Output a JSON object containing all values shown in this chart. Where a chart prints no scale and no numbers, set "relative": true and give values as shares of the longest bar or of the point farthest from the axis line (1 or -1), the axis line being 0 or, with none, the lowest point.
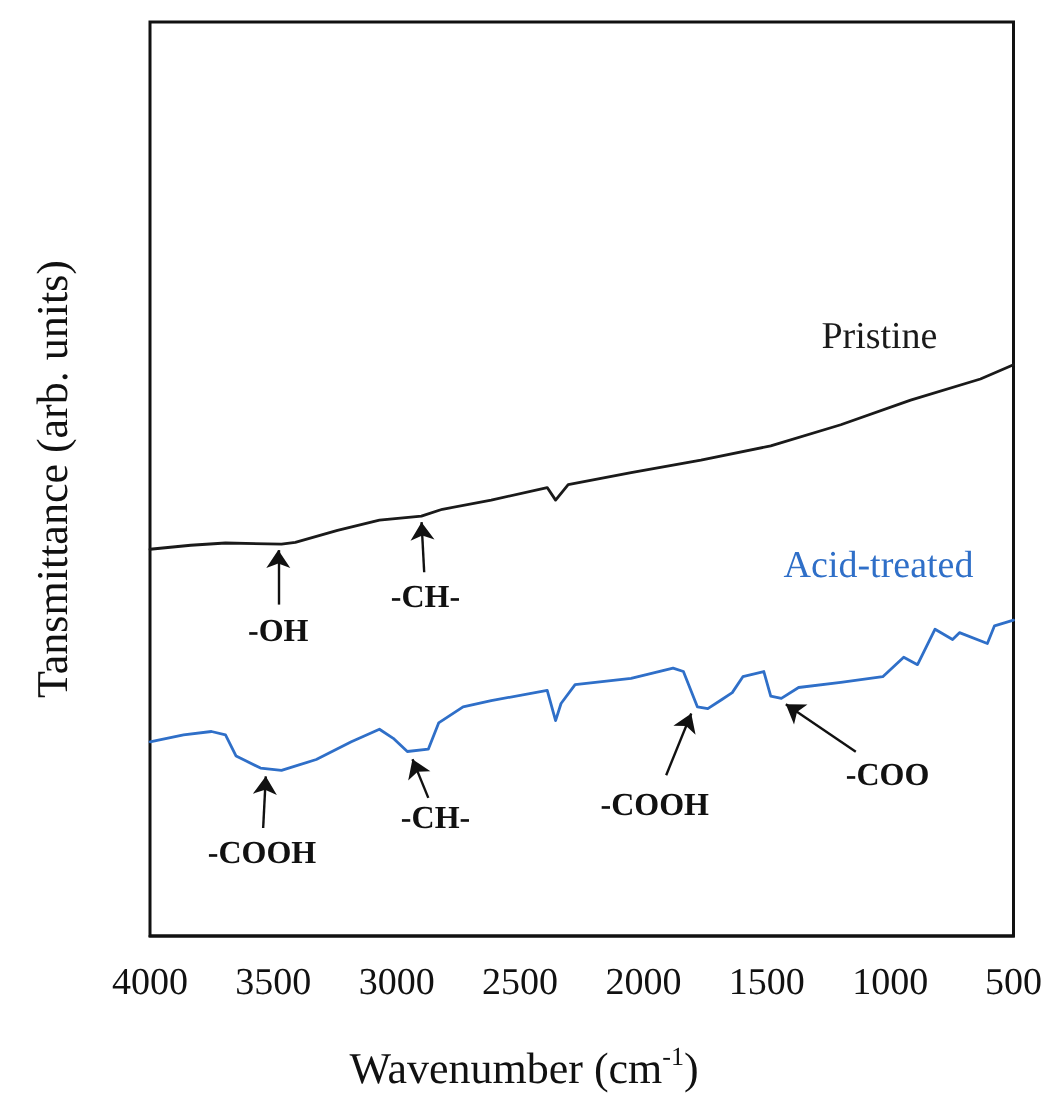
{
  "chart_data": {
    "type": "line",
    "relative": true,
    "xlabel": "Wavenumber (cm$^{-1}$)",
    "ylabel": "Tansmittance (arb. units)",
    "xlim": [
      4000,
      500
    ],
    "xticks": [
      4000,
      3500,
      3000,
      2500,
      2000,
      1500,
      1000,
      500
    ],
    "grid": false,
    "legend": false,
    "marker": "none",
    "line_style": "solid",
    "series": [
      {
        "name": "Pristine",
        "color": "#1a1a1a",
        "x": [
          4000,
          3835,
          3694,
          3467,
          3411,
          3240,
          3070,
          2900,
          2815,
          2617,
          2390,
          2356,
          2305,
          2050,
          1767,
          1484,
          1200,
          917,
          634,
          500
        ],
        "values": [
          0.677,
          0.684,
          0.688,
          0.686,
          0.689,
          0.71,
          0.728,
          0.735,
          0.747,
          0.763,
          0.785,
          0.763,
          0.79,
          0.811,
          0.833,
          0.858,
          0.895,
          0.938,
          0.975,
          1.0
        ]
      },
      {
        "name": "Acid-treated",
        "color": "#2f6fc8",
        "x": [
          4000,
          3864,
          3751,
          3694,
          3651,
          3552,
          3467,
          3326,
          3184,
          3070,
          3014,
          2957,
          2872,
          2830,
          2731,
          2617,
          2390,
          2356,
          2334,
          2277,
          2050,
          1880,
          1838,
          1781,
          1739,
          1682,
          1640,
          1597,
          1512,
          1484,
          1441,
          1371,
          1200,
          1030,
          945,
          889,
          818,
          747,
          719,
          606,
          577,
          500
        ],
        "values": [
          0.34,
          0.352,
          0.358,
          0.352,
          0.315,
          0.294,
          0.29,
          0.309,
          0.34,
          0.362,
          0.346,
          0.323,
          0.327,
          0.373,
          0.401,
          0.412,
          0.43,
          0.377,
          0.407,
          0.44,
          0.451,
          0.469,
          0.463,
          0.401,
          0.398,
          0.414,
          0.426,
          0.454,
          0.463,
          0.42,
          0.416,
          0.435,
          0.444,
          0.454,
          0.488,
          0.475,
          0.537,
          0.519,
          0.531,
          0.512,
          0.543,
          0.553
        ]
      }
    ],
    "annotations": [
      {
        "text": "-OH",
        "x": 3480,
        "y": 0.686
      },
      {
        "text": "-CH-",
        "x": 2900,
        "y": 0.735
      },
      {
        "text": "-COOH",
        "x": 3530,
        "y": 0.29
      },
      {
        "text": "-CH-",
        "x": 2940,
        "y": 0.32
      },
      {
        "text": "-COOH",
        "x": 1800,
        "y": 0.4
      },
      {
        "text": "-COO",
        "x": 1440,
        "y": 0.416
      }
    ]
  }
}
